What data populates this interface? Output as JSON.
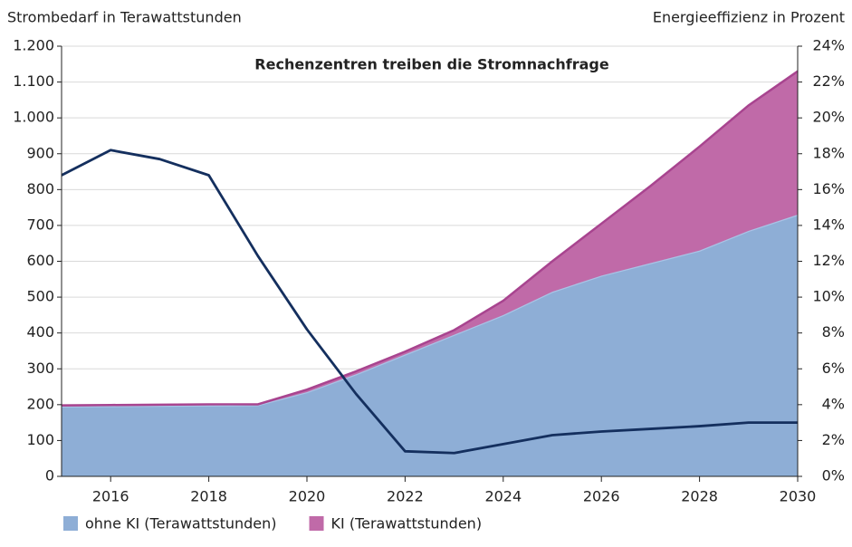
{
  "chart_data": {
    "type": "area",
    "title": "Rechenzentren treiben die Stromnachfrage",
    "y_label": "Strombedarf in Terawattstunden",
    "y2_label": "Energieeffizienz in Prozent",
    "stacked": true,
    "x": [
      2015,
      2016,
      2017,
      2018,
      2019,
      2020,
      2021,
      2022,
      2023,
      2024,
      2025,
      2026,
      2027,
      2028,
      2029,
      2030
    ],
    "series": [
      {
        "name": "ohne KI (Terawattstunden)",
        "color": "#8eaed6",
        "stroke": "#a9c4e6",
        "values": [
          195,
          196,
          197,
          198,
          199,
          235,
          285,
          340,
          395,
          450,
          515,
          560,
          595,
          630,
          685,
          730
        ]
      },
      {
        "name": "KI (Terawattstunden)",
        "color": "#c06aa8",
        "stroke": "#a8448f",
        "values": [
          3,
          3,
          3,
          3,
          2,
          7,
          8,
          8,
          13,
          40,
          85,
          145,
          215,
          290,
          350,
          400
        ]
      },
      {
        "type": "line",
        "axis": "y2",
        "color": "#142f5e",
        "values": [
          16.8,
          18.2,
          17.7,
          16.8,
          12.3,
          8.2,
          4.6,
          1.4,
          1.3,
          1.8,
          2.3,
          2.5,
          2.65,
          2.8,
          3.0,
          3.0
        ]
      }
    ],
    "xlim": [
      2015,
      2030
    ],
    "xticks": [
      2016,
      2018,
      2020,
      2022,
      2024,
      2026,
      2028,
      2030
    ],
    "ylim": [
      0,
      1200
    ],
    "yticks": [
      0,
      100,
      200,
      300,
      400,
      500,
      600,
      700,
      800,
      900,
      {
        "value": 1000,
        "label": "1.000"
      },
      {
        "value": 1100,
        "label": "1.100"
      },
      {
        "value": 1200,
        "label": "1.200"
      }
    ],
    "y2lim": [
      0,
      24
    ],
    "y2ticks": [
      {
        "value": 0,
        "label": "0%"
      },
      {
        "value": 2,
        "label": "2%"
      },
      {
        "value": 4,
        "label": "4%"
      },
      {
        "value": 6,
        "label": "6%"
      },
      {
        "value": 8,
        "label": "8%"
      },
      {
        "value": 10,
        "label": "10%"
      },
      {
        "value": 12,
        "label": "12%"
      },
      {
        "value": 14,
        "label": "14%"
      },
      {
        "value": 16,
        "label": "16%"
      },
      {
        "value": 18,
        "label": "18%"
      },
      {
        "value": 20,
        "label": "20%"
      },
      {
        "value": 22,
        "label": "22%"
      },
      {
        "value": 24,
        "label": "24%"
      }
    ],
    "grid": true,
    "legend": "bottom"
  }
}
